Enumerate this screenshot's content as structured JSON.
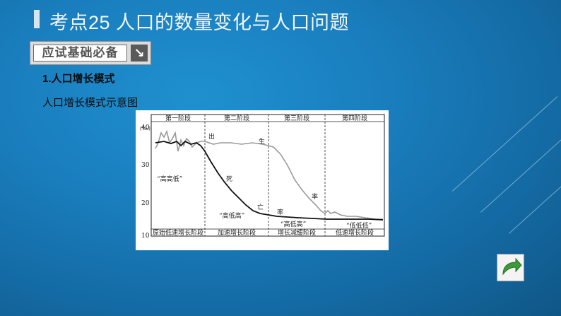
{
  "title": "考点25 人口的数量变化与人口问题",
  "badge": {
    "label": "应试基础必备",
    "arrow_icon": "arrow-down-right-icon"
  },
  "heading": "1.人口增长模式",
  "subheading": "人口增长模式示意图",
  "chart_data": {
    "type": "line",
    "stages": [
      "第一阶段",
      "第二阶段",
      "第三阶段",
      "第四阶段"
    ],
    "modes": [
      "原始低速增长阶段",
      "加速增长阶段",
      "增长减缓阶段",
      "低速增长阶段"
    ],
    "patterns": [
      "“高高低”",
      "“高低高”",
      "“高低高”",
      "“低低低”"
    ],
    "ylabel": "(‰)",
    "yticks": [
      "40",
      "30",
      "20",
      "10"
    ],
    "ylim": [
      10,
      40
    ],
    "series": [
      {
        "name": "出生率",
        "label_chars": [
          "出",
          "生",
          "率"
        ]
      },
      {
        "name": "死亡率",
        "label_chars": [
          "死",
          "亡",
          "率"
        ]
      }
    ]
  },
  "nav": {
    "icon": "return-arrow-icon",
    "color": "#3d9a3a"
  }
}
